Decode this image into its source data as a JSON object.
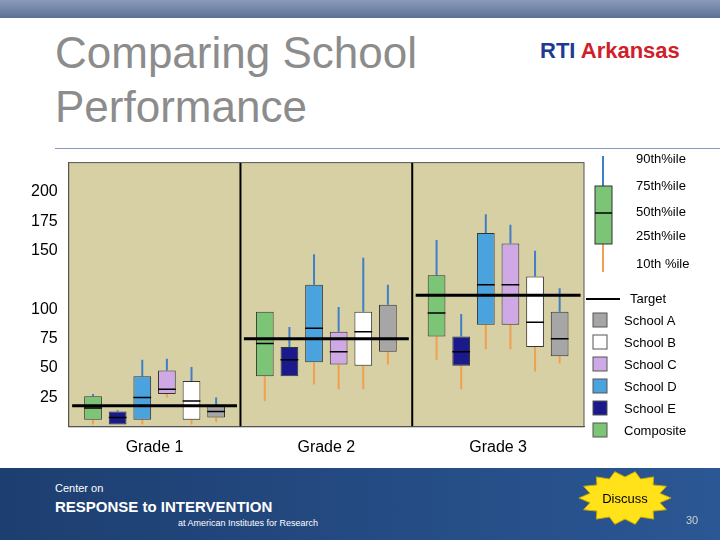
{
  "title": "Comparing School Performance",
  "logo": [
    "RTI",
    "Arkansas"
  ],
  "footer": {
    "line1": "Center on",
    "line2": "RESPONSE to INTERVENTION",
    "line3": "at American Institutes for Research",
    "button": "Discuss",
    "page": "30"
  },
  "chart_data": {
    "type": "boxplot",
    "categories": [
      "Grade 1",
      "Grade 2",
      "Grade 3"
    ],
    "ylim": [
      0,
      225
    ],
    "yticks": [
      25,
      50,
      75,
      100,
      150,
      175,
      200
    ],
    "grid": false,
    "legend": "right",
    "percentile_key": [
      "90th%ile",
      "75th%ile",
      "50th%ile",
      "25th%ile",
      "10th %ile"
    ],
    "target": {
      "name": "Target",
      "color": "#000000",
      "values": [
        18,
        75,
        112
      ]
    },
    "series": [
      {
        "name": "Composite",
        "color": "#7cc576",
        "values": [
          [
            2,
            6,
            16,
            26,
            28
          ],
          [
            22,
            43,
            71,
            98,
            98
          ],
          [
            57,
            77,
            97,
            129,
            159
          ]
        ]
      },
      {
        "name": "School E",
        "color": "#1a1a8c",
        "values": [
          [
            2,
            2,
            8,
            13,
            14
          ],
          [
            43,
            43,
            57,
            68,
            85
          ],
          [
            32,
            52,
            64,
            77,
            96
          ]
        ]
      },
      {
        "name": "School D",
        "color": "#4aa3df",
        "values": [
          [
            2,
            6,
            25,
            43,
            57
          ],
          [
            36,
            55,
            84,
            121,
            147
          ],
          [
            66,
            87,
            121,
            165,
            181
          ]
        ]
      },
      {
        "name": "School C",
        "color": "#cfa8e6",
        "values": [
          [
            25,
            28,
            32,
            48,
            58
          ],
          [
            32,
            53,
            64,
            81,
            102
          ],
          [
            66,
            87,
            121,
            156,
            172
          ]
        ]
      },
      {
        "name": "School B",
        "color": "#ffffff",
        "values": [
          [
            2,
            6,
            22,
            39,
            51
          ],
          [
            32,
            52,
            81,
            98,
            144
          ],
          [
            47,
            68,
            89,
            128,
            150
          ]
        ]
      },
      {
        "name": "School A",
        "color": "#a6a6a6",
        "values": [
          [
            4,
            8,
            13,
            18,
            25
          ],
          [
            53,
            64,
            75,
            104,
            121
          ],
          [
            54,
            60,
            75,
            98,
            118
          ]
        ]
      }
    ]
  }
}
